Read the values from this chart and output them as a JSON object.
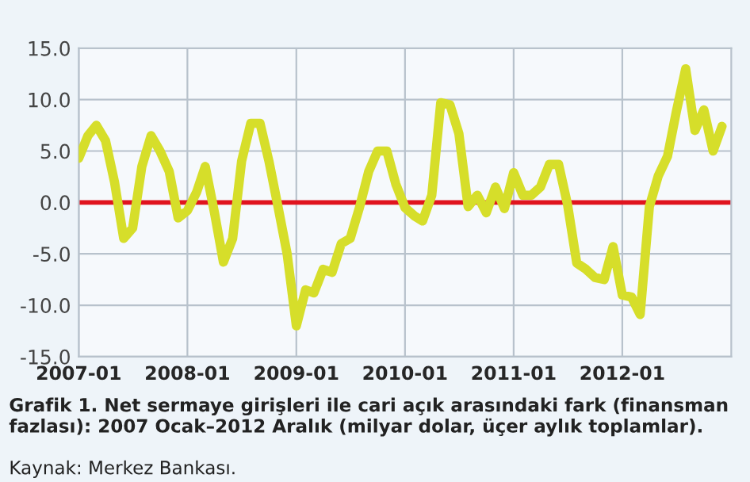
{
  "chart_data": {
    "type": "line",
    "title": "Grafik 1. Net sermaye girişleri ile cari açık arasındaki fark (finansman fazlası): 2007 Ocak–2012 Aralık (milyar dolar, üçer aylık toplamlar).",
    "annotations": [
      "Kaynak: Merkez Bankası."
    ],
    "x": [
      "2007-01",
      "2007-02",
      "2007-03",
      "2007-04",
      "2007-05",
      "2007-06",
      "2007-07",
      "2007-08",
      "2007-09",
      "2007-10",
      "2007-11",
      "2007-12",
      "2008-01",
      "2008-02",
      "2008-03",
      "2008-04",
      "2008-05",
      "2008-06",
      "2008-07",
      "2008-08",
      "2008-09",
      "2008-10",
      "2008-11",
      "2008-12",
      "2009-01",
      "2009-02",
      "2009-03",
      "2009-04",
      "2009-05",
      "2009-06",
      "2009-07",
      "2009-08",
      "2009-09",
      "2009-10",
      "2009-11",
      "2009-12",
      "2010-01",
      "2010-02",
      "2010-03",
      "2010-04",
      "2010-05",
      "2010-06",
      "2010-07",
      "2010-08",
      "2010-09",
      "2010-10",
      "2010-11",
      "2010-12",
      "2011-01",
      "2011-02",
      "2011-03",
      "2011-04",
      "2011-05",
      "2011-06",
      "2011-07",
      "2011-08",
      "2011-09",
      "2011-10",
      "2011-11",
      "2011-12",
      "2012-01",
      "2012-02",
      "2012-03",
      "2012-04",
      "2012-05",
      "2012-06",
      "2012-07",
      "2012-08",
      "2012-09",
      "2012-10",
      "2012-11",
      "2012-12"
    ],
    "series": [
      {
        "color": "#d6de2a",
        "values": [
          4.3,
          6.5,
          7.5,
          6.0,
          2.0,
          -3.5,
          -2.5,
          3.5,
          6.5,
          5.0,
          3.0,
          -1.5,
          -0.8,
          1.0,
          3.5,
          -1.0,
          -5.8,
          -3.5,
          4.0,
          7.7,
          7.7,
          4.0,
          -0.5,
          -5.0,
          -12.0,
          -8.5,
          -8.8,
          -6.5,
          -6.8,
          -4.0,
          -3.5,
          -0.5,
          3.0,
          5.0,
          5.0,
          1.8,
          -0.5,
          -1.3,
          -1.8,
          0.7,
          9.7,
          9.5,
          6.7,
          -0.4,
          0.7,
          -1.0,
          1.5,
          -0.6,
          2.9,
          0.7,
          0.7,
          1.5,
          3.7,
          3.7,
          -0.2,
          -5.9,
          -6.5,
          -7.3,
          -7.5,
          -4.3,
          -9.0,
          -9.2,
          -10.9,
          -0.4,
          2.6,
          4.5,
          8.9,
          13.0,
          7.0,
          9.0,
          5.0,
          7.4
        ]
      }
    ],
    "xlim": [
      "2007-01",
      "2013-01"
    ],
    "xticks": [
      "2007-01",
      "2008-01",
      "2009-01",
      "2010-01",
      "2011-01",
      "2012-01"
    ],
    "ylim": [
      -15,
      15
    ],
    "yticks": [
      {
        "value": -15,
        "label": "-15.0"
      },
      {
        "value": -10,
        "label": "-10.0"
      },
      {
        "value": -5,
        "label": "-5.0"
      },
      {
        "value": 0,
        "label": "0.0"
      },
      {
        "value": 5,
        "label": "5.0"
      },
      {
        "value": 10,
        "label": "10.0"
      },
      {
        "value": 15,
        "label": "15.0"
      }
    ],
    "ref_lines": [
      {
        "axis": "y",
        "value": 0,
        "color": "#e0141e"
      }
    ],
    "grid": true,
    "line_style": "solid",
    "marker": "none"
  }
}
